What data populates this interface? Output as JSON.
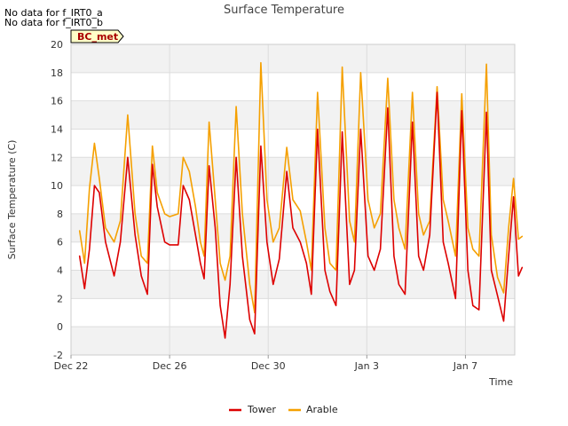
{
  "notes": [
    "No data for f_IRT0_a",
    "No data for f_IRT0_b"
  ],
  "badge": "BC_met",
  "chart_data": {
    "type": "line",
    "title": "Surface Temperature",
    "xlabel": "Time",
    "ylabel": "Surface Temperature (C)",
    "x_unit": "days since Dec 22",
    "xlim": [
      0,
      18
    ],
    "ylim": [
      -2,
      20
    ],
    "yticks": [
      -2,
      0,
      2,
      4,
      6,
      8,
      10,
      12,
      14,
      16,
      18,
      20
    ],
    "xticks": [
      {
        "value": 0,
        "label": "Dec 22"
      },
      {
        "value": 4,
        "label": "Dec 26"
      },
      {
        "value": 8,
        "label": "Dec 30"
      },
      {
        "value": 12,
        "label": "Jan 3"
      },
      {
        "value": 16,
        "label": "Jan 7"
      }
    ],
    "grid": true,
    "legend": "bottom-center",
    "series": [
      {
        "name": "Tower",
        "color": "#dd0000",
        "x": [
          0.35,
          0.55,
          0.75,
          0.95,
          1.15,
          1.4,
          1.75,
          2.0,
          2.3,
          2.6,
          2.85,
          3.1,
          3.3,
          3.5,
          3.8,
          4.0,
          4.35,
          4.55,
          4.8,
          5.05,
          5.25,
          5.4,
          5.6,
          5.85,
          6.05,
          6.25,
          6.45,
          6.7,
          6.95,
          7.25,
          7.45,
          7.7,
          7.95,
          8.2,
          8.45,
          8.75,
          9.0,
          9.3,
          9.55,
          9.75,
          10.0,
          10.3,
          10.5,
          10.75,
          11.0,
          11.3,
          11.5,
          11.75,
          12.05,
          12.3,
          12.55,
          12.85,
          13.1,
          13.3,
          13.55,
          13.85,
          14.1,
          14.3,
          14.55,
          14.85,
          15.1,
          15.3,
          15.6,
          15.85,
          16.1,
          16.3,
          16.55,
          16.85,
          17.05,
          17.3
        ],
        "y": [
          5.0,
          2.7,
          5.5,
          10.0,
          9.5,
          6.0,
          3.6,
          6.0,
          12.0,
          6.5,
          3.6,
          2.3,
          11.5,
          8.5,
          6.0,
          5.8,
          5.8,
          10.0,
          9.0,
          6.5,
          4.5,
          3.4,
          11.4,
          7.0,
          1.5,
          -0.8,
          3.0,
          12.0,
          5.0,
          0.5,
          -0.5,
          12.8,
          6.0,
          3.0,
          4.8,
          11.0,
          7.0,
          6.0,
          4.5,
          2.3,
          14.0,
          4.0,
          2.5,
          1.5,
          13.8,
          3.0,
          4.0,
          14.0,
          5.0,
          4.0,
          5.5,
          15.5,
          5.0,
          3.0,
          2.3,
          14.5,
          5.0,
          4.0,
          6.5,
          16.6,
          6.0,
          4.5,
          2.0,
          15.3,
          4.0,
          1.5,
          1.2,
          15.2,
          4.0,
          2.2
        ],
        "x_tail": [
          17.55,
          17.75,
          17.95,
          18.15,
          18.3
        ],
        "y_tail": [
          0.4,
          5.0,
          9.2,
          3.6,
          4.2
        ]
      },
      {
        "name": "Arable",
        "color": "#f5a000",
        "x": [
          0.35,
          0.55,
          0.75,
          0.95,
          1.15,
          1.4,
          1.75,
          2.0,
          2.3,
          2.6,
          2.85,
          3.1,
          3.3,
          3.5,
          3.8,
          4.0,
          4.35,
          4.55,
          4.8,
          5.05,
          5.25,
          5.4,
          5.6,
          5.85,
          6.05,
          6.25,
          6.45,
          6.7,
          6.95,
          7.25,
          7.45,
          7.7,
          7.95,
          8.2,
          8.45,
          8.75,
          9.0,
          9.3,
          9.55,
          9.75,
          10.0,
          10.3,
          10.5,
          10.75,
          11.0,
          11.3,
          11.5,
          11.75,
          12.05,
          12.3,
          12.55,
          12.85,
          13.1,
          13.3,
          13.55,
          13.85,
          14.1,
          14.3,
          14.55,
          14.85,
          15.1,
          15.3,
          15.6,
          15.85,
          16.1,
          16.3,
          16.55,
          16.85,
          17.05,
          17.3
        ],
        "y": [
          6.8,
          4.5,
          9.8,
          13.0,
          10.5,
          7.0,
          6.0,
          7.5,
          15.0,
          8.0,
          5.0,
          4.5,
          12.8,
          9.5,
          8.0,
          7.8,
          8.0,
          12.0,
          11.0,
          8.5,
          6.0,
          5.0,
          14.5,
          9.0,
          4.5,
          3.3,
          5.0,
          15.6,
          8.0,
          3.0,
          1.0,
          18.7,
          9.0,
          6.0,
          7.0,
          12.7,
          9.0,
          8.2,
          6.0,
          4.0,
          16.6,
          7.0,
          4.5,
          4.0,
          18.4,
          7.5,
          6.0,
          18.0,
          9.0,
          7.0,
          8.0,
          17.6,
          9.0,
          7.0,
          5.5,
          16.6,
          8.0,
          6.5,
          7.5,
          17.0,
          9.0,
          7.5,
          5.0,
          16.5,
          7.0,
          5.5,
          5.0,
          18.6,
          6.5,
          3.5
        ],
        "x_tail": [
          17.55,
          17.75,
          17.95,
          18.15,
          18.3
        ],
        "y_tail": [
          2.4,
          7.0,
          10.5,
          6.2,
          6.4
        ]
      }
    ]
  }
}
